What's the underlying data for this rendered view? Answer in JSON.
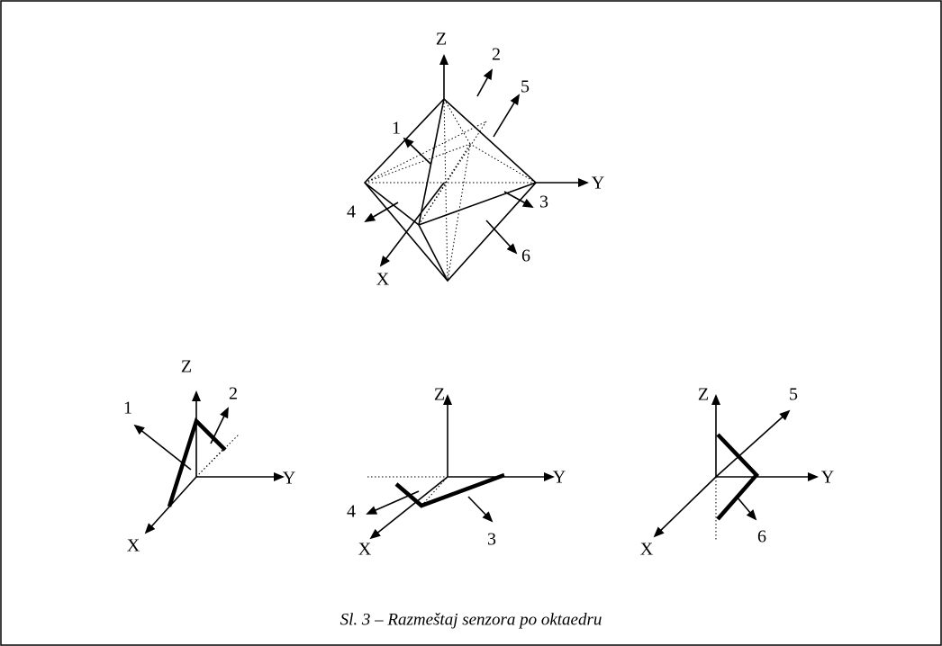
{
  "figures": [
    {
      "labels": [
        "Z",
        "Y",
        "X",
        "1",
        "2",
        "3",
        "4",
        "5",
        "6"
      ]
    },
    {
      "labels": [
        "Z",
        "Y",
        "X",
        "1",
        "2"
      ]
    },
    {
      "labels": [
        "Z",
        "Y",
        "X",
        "4",
        "3"
      ]
    },
    {
      "labels": [
        "Z",
        "Y",
        "X",
        "5",
        "6"
      ]
    }
  ],
  "caption": "Sl. 3 – Razmeštaj senzora po oktaedru"
}
